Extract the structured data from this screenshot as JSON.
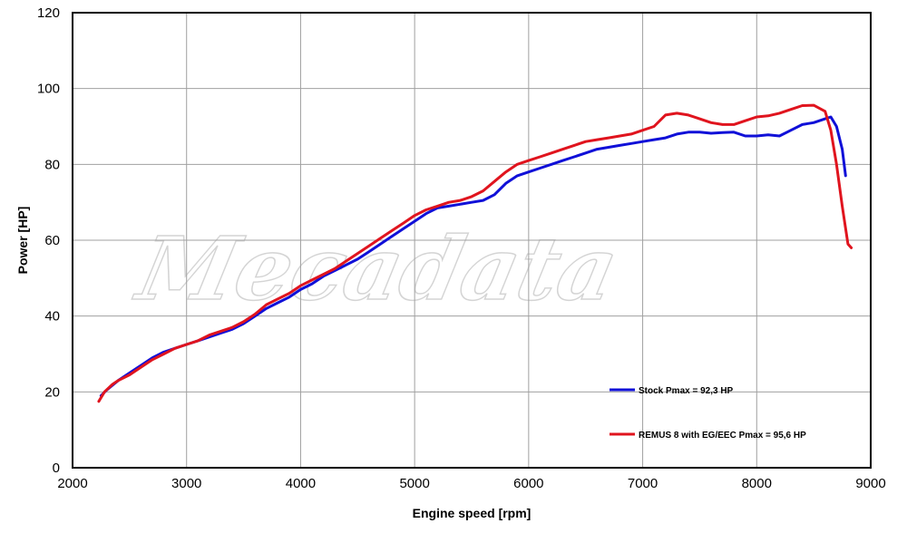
{
  "chart_data": {
    "type": "line",
    "xlabel": "Engine speed [rpm]",
    "ylabel": "Power [HP]",
    "xlim": [
      2000,
      9000
    ],
    "ylim": [
      0,
      120
    ],
    "x_ticks": [
      2000,
      3000,
      4000,
      5000,
      6000,
      7000,
      8000,
      9000
    ],
    "y_ticks": [
      0,
      20,
      40,
      60,
      80,
      100,
      120
    ],
    "grid": true,
    "legend_placement": "bottom-right",
    "watermark": "Mecadata",
    "series": [
      {
        "name": "Stock Pmax = 92,3 HP",
        "color": "#1010d8",
        "x": [
          2250,
          2300,
          2400,
          2500,
          2600,
          2700,
          2800,
          2900,
          3000,
          3100,
          3200,
          3300,
          3400,
          3500,
          3600,
          3700,
          3800,
          3900,
          4000,
          4100,
          4200,
          4300,
          4400,
          4500,
          4600,
          4700,
          4800,
          4900,
          5000,
          5100,
          5200,
          5300,
          5400,
          5500,
          5600,
          5700,
          5800,
          5900,
          6000,
          6100,
          6200,
          6300,
          6400,
          6500,
          6600,
          6700,
          6800,
          6900,
          7000,
          7100,
          7200,
          7300,
          7400,
          7500,
          7600,
          7700,
          7800,
          7900,
          8000,
          8100,
          8200,
          8300,
          8400,
          8500,
          8600,
          8650,
          8700,
          8750,
          8780
        ],
        "y": [
          19.0,
          20.5,
          23.0,
          25.0,
          27.0,
          29.0,
          30.5,
          31.5,
          32.5,
          33.5,
          34.5,
          35.5,
          36.5,
          38.0,
          40.0,
          42.0,
          43.5,
          45.0,
          47.0,
          48.5,
          50.5,
          52.0,
          53.5,
          55.0,
          57.0,
          59.0,
          61.0,
          63.0,
          65.0,
          67.0,
          68.5,
          69.0,
          69.5,
          70.0,
          70.5,
          72.0,
          75.0,
          77.0,
          78.0,
          79.0,
          80.0,
          81.0,
          82.0,
          83.0,
          84.0,
          84.5,
          85.0,
          85.5,
          86.0,
          86.5,
          87.0,
          88.0,
          88.5,
          88.5,
          88.2,
          88.4,
          88.5,
          87.5,
          87.5,
          87.8,
          87.5,
          89.0,
          90.5,
          91.0,
          92.0,
          92.5,
          90.0,
          84.0,
          77.0
        ]
      },
      {
        "name": "REMUS 8 with EG/EEC Pmax =  95,6 HP",
        "color": "#e0141e",
        "x": [
          2230,
          2280,
          2350,
          2400,
          2500,
          2600,
          2700,
          2800,
          2900,
          3000,
          3100,
          3200,
          3300,
          3400,
          3500,
          3600,
          3700,
          3800,
          3900,
          4000,
          4100,
          4200,
          4300,
          4400,
          4500,
          4600,
          4700,
          4800,
          4900,
          5000,
          5100,
          5200,
          5300,
          5400,
          5500,
          5600,
          5700,
          5800,
          5900,
          6000,
          6100,
          6200,
          6300,
          6400,
          6500,
          6600,
          6700,
          6800,
          6900,
          7000,
          7100,
          7200,
          7300,
          7400,
          7500,
          7600,
          7700,
          7800,
          7900,
          8000,
          8100,
          8200,
          8300,
          8400,
          8500,
          8600,
          8650,
          8700,
          8750,
          8800,
          8830
        ],
        "y": [
          17.5,
          20.0,
          22.0,
          23.0,
          24.5,
          26.5,
          28.5,
          30.0,
          31.5,
          32.5,
          33.5,
          35.0,
          36.0,
          37.0,
          38.5,
          40.5,
          43.0,
          44.5,
          46.0,
          48.0,
          49.5,
          51.0,
          52.5,
          54.5,
          56.5,
          58.5,
          60.5,
          62.5,
          64.5,
          66.5,
          68.0,
          69.0,
          70.0,
          70.5,
          71.5,
          73.0,
          75.5,
          78.0,
          80.0,
          81.0,
          82.0,
          83.0,
          84.0,
          85.0,
          86.0,
          86.5,
          87.0,
          87.5,
          88.0,
          89.0,
          90.0,
          93.0,
          93.5,
          93.0,
          92.0,
          91.0,
          90.5,
          90.5,
          91.5,
          92.5,
          92.8,
          93.5,
          94.5,
          95.5,
          95.6,
          94.0,
          89.0,
          80.0,
          69.0,
          59.0,
          58.0
        ]
      }
    ]
  }
}
